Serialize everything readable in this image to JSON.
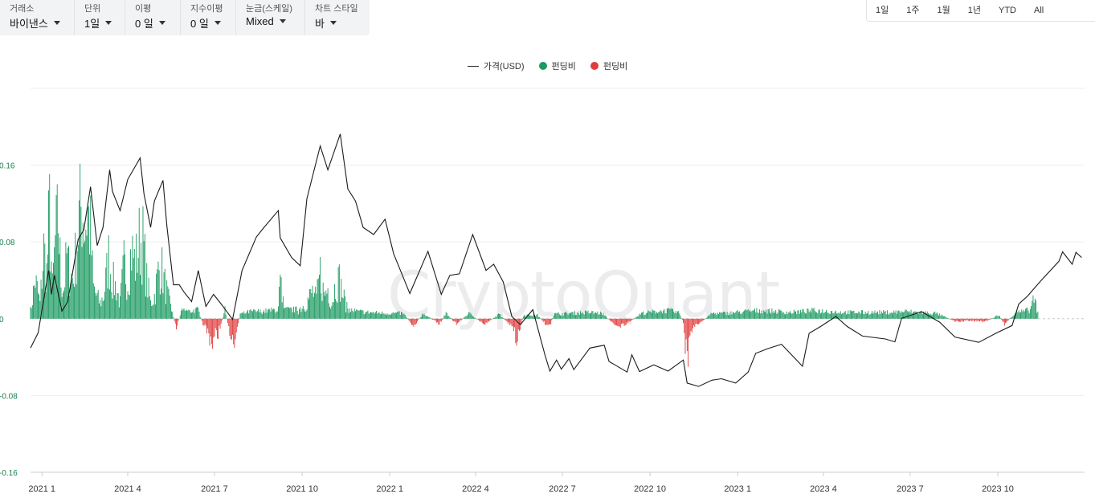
{
  "toolbar": {
    "exchange": {
      "label": "거래소",
      "value": "바이낸스"
    },
    "unit": {
      "label": "단위",
      "value": "1일"
    },
    "ma": {
      "label": "이평",
      "value": "0 일"
    },
    "ema": {
      "label": "지수이평",
      "value": "0 일"
    },
    "scale": {
      "label": "눈금(스케일)",
      "value": "Mixed"
    },
    "chart_style": {
      "label": "차트 스타일",
      "value": "바"
    }
  },
  "ranges": [
    "1일",
    "1주",
    "1월",
    "1년",
    "YTD",
    "All"
  ],
  "watermark": "CryptoQuant",
  "colors": {
    "positive": "#1a9a60",
    "negative": "#e03c3c",
    "price": "#1b1b1b",
    "grid": "#eeeeee"
  },
  "chart_data": {
    "type": "bar",
    "legend_position": "top-center",
    "legend": [
      {
        "name": "가격(USD)",
        "kind": "line",
        "color": "#1b1b1b"
      },
      {
        "name": "펀딩비",
        "kind": "dot",
        "color": "#1a9a60"
      },
      {
        "name": "펀딩비",
        "kind": "dot",
        "color": "#e03c3c"
      }
    ],
    "xlabel": "",
    "ylabel": "",
    "ylim": [
      -0.16,
      0.24
    ],
    "yticks": [
      {
        "value": 0.16,
        "label": "0.16"
      },
      {
        "value": 0.08,
        "label": "0.08"
      },
      {
        "value": 0,
        "label": "0"
      },
      {
        "value": -0.08,
        "label": "-0.08"
      },
      {
        "value": -0.16,
        "label": "-0.16"
      }
    ],
    "x_range": [
      "2020-12-20",
      "2023-12-31"
    ],
    "xticks": [
      {
        "date": "2021-01-01",
        "label": "2021 1"
      },
      {
        "date": "2021-04-01",
        "label": "2021 4"
      },
      {
        "date": "2021-07-01",
        "label": "2021 7"
      },
      {
        "date": "2021-10-01",
        "label": "2021 10"
      },
      {
        "date": "2022-01-01",
        "label": "2022 1"
      },
      {
        "date": "2022-04-01",
        "label": "2022 4"
      },
      {
        "date": "2022-07-01",
        "label": "2022 7"
      },
      {
        "date": "2022-10-01",
        "label": "2022 10"
      },
      {
        "date": "2023-01-01",
        "label": "2023 1"
      },
      {
        "date": "2023-04-01",
        "label": "2023 4"
      },
      {
        "date": "2023-07-01",
        "label": "2023 7"
      },
      {
        "date": "2023-10-01",
        "label": "2023 10"
      }
    ],
    "funding_rate": {
      "name": "펀딩비",
      "points": [
        [
          "2020-12-20",
          0.01
        ],
        [
          "2020-12-25",
          0.05
        ],
        [
          "2020-12-30",
          0.02
        ],
        [
          "2021-01-03",
          0.09
        ],
        [
          "2021-01-06",
          0.06
        ],
        [
          "2021-01-09",
          0.14
        ],
        [
          "2021-01-12",
          0.04
        ],
        [
          "2021-01-15",
          0.1
        ],
        [
          "2021-01-18",
          0.13
        ],
        [
          "2021-01-21",
          0.05
        ],
        [
          "2021-01-24",
          0.04
        ],
        [
          "2021-01-27",
          0.08
        ],
        [
          "2021-01-30",
          0.06
        ],
        [
          "2021-02-03",
          0.05
        ],
        [
          "2021-02-06",
          0.09
        ],
        [
          "2021-02-09",
          0.13
        ],
        [
          "2021-02-12",
          0.15
        ],
        [
          "2021-02-15",
          0.12
        ],
        [
          "2021-02-18",
          0.14
        ],
        [
          "2021-02-21",
          0.11
        ],
        [
          "2021-02-24",
          0.04
        ],
        [
          "2021-02-27",
          0.03
        ],
        [
          "2021-03-03",
          0.02
        ],
        [
          "2021-03-07",
          0.03
        ],
        [
          "2021-03-12",
          0.08
        ],
        [
          "2021-03-16",
          0.05
        ],
        [
          "2021-03-20",
          0.04
        ],
        [
          "2021-03-24",
          0.02
        ],
        [
          "2021-03-28",
          0.07
        ],
        [
          "2021-04-01",
          0.05
        ],
        [
          "2021-04-05",
          0.09
        ],
        [
          "2021-04-09",
          0.07
        ],
        [
          "2021-04-13",
          0.1
        ],
        [
          "2021-04-17",
          0.1
        ],
        [
          "2021-04-21",
          0.05
        ],
        [
          "2021-04-25",
          0.02
        ],
        [
          "2021-04-29",
          0.03
        ],
        [
          "2021-05-03",
          0.06
        ],
        [
          "2021-05-06",
          0.07
        ],
        [
          "2021-05-09",
          0.05
        ],
        [
          "2021-05-13",
          0.03
        ],
        [
          "2021-05-17",
          0.01
        ],
        [
          "2021-05-22",
          -0.01
        ],
        [
          "2021-05-28",
          0.01
        ],
        [
          "2021-06-05",
          0.008
        ],
        [
          "2021-06-14",
          0.01
        ],
        [
          "2021-06-20",
          -0.01
        ],
        [
          "2021-06-25",
          -0.02
        ],
        [
          "2021-06-29",
          -0.03
        ],
        [
          "2021-07-06",
          -0.015
        ],
        [
          "2021-07-12",
          0.01
        ],
        [
          "2021-07-18",
          -0.02
        ],
        [
          "2021-07-22",
          -0.025
        ],
        [
          "2021-07-28",
          0.005
        ],
        [
          "2021-08-08",
          0.008
        ],
        [
          "2021-08-20",
          0.008
        ],
        [
          "2021-09-05",
          0.01
        ],
        [
          "2021-09-08",
          0.05
        ],
        [
          "2021-09-12",
          0.01
        ],
        [
          "2021-09-25",
          0.01
        ],
        [
          "2021-10-05",
          0.02
        ],
        [
          "2021-10-12",
          0.035
        ],
        [
          "2021-10-16",
          0.025
        ],
        [
          "2021-10-20",
          0.06
        ],
        [
          "2021-10-24",
          0.03
        ],
        [
          "2021-10-28",
          0.04
        ],
        [
          "2021-11-01",
          0.02
        ],
        [
          "2021-11-05",
          0.045
        ],
        [
          "2021-11-09",
          0.05
        ],
        [
          "2021-11-13",
          0.03
        ],
        [
          "2021-11-18",
          0.01
        ],
        [
          "2021-11-28",
          0.008
        ],
        [
          "2021-12-10",
          0.007
        ],
        [
          "2021-12-28",
          0.006
        ],
        [
          "2022-01-15",
          0.006
        ],
        [
          "2022-01-26",
          -0.008
        ],
        [
          "2022-02-05",
          0.006
        ],
        [
          "2022-02-22",
          -0.006
        ],
        [
          "2022-03-01",
          0.006
        ],
        [
          "2022-03-12",
          -0.006
        ],
        [
          "2022-03-25",
          0.006
        ],
        [
          "2022-04-10",
          -0.006
        ],
        [
          "2022-04-26",
          0.005
        ],
        [
          "2022-05-10",
          -0.01
        ],
        [
          "2022-05-15",
          -0.028
        ],
        [
          "2022-05-21",
          0.004
        ],
        [
          "2022-06-05",
          0.004
        ],
        [
          "2022-06-12",
          -0.004
        ],
        [
          "2022-06-18",
          -0.01
        ],
        [
          "2022-06-22",
          0.005
        ],
        [
          "2022-07-10",
          0.006
        ],
        [
          "2022-07-28",
          0.007
        ],
        [
          "2022-08-12",
          0.006
        ],
        [
          "2022-08-22",
          -0.004
        ],
        [
          "2022-08-30",
          -0.008
        ],
        [
          "2022-09-08",
          -0.005
        ],
        [
          "2022-09-22",
          0.006
        ],
        [
          "2022-10-08",
          0.008
        ],
        [
          "2022-10-22",
          0.009
        ],
        [
          "2022-11-01",
          0.006
        ],
        [
          "2022-11-05",
          -0.004
        ],
        [
          "2022-11-09",
          -0.06
        ],
        [
          "2022-11-12",
          -0.02
        ],
        [
          "2022-11-16",
          -0.01
        ],
        [
          "2022-11-22",
          -0.005
        ],
        [
          "2022-12-05",
          0.006
        ],
        [
          "2022-12-20",
          0.006
        ],
        [
          "2023-01-10",
          0.008
        ],
        [
          "2023-01-25",
          0.009
        ],
        [
          "2023-02-10",
          0.008
        ],
        [
          "2023-02-25",
          0.007
        ],
        [
          "2023-03-10",
          0.008
        ],
        [
          "2023-03-22",
          0.009
        ],
        [
          "2023-04-08",
          0.008
        ],
        [
          "2023-04-22",
          0.007
        ],
        [
          "2023-05-08",
          0.007
        ],
        [
          "2023-05-25",
          0.007
        ],
        [
          "2023-06-10",
          0.007
        ],
        [
          "2023-06-25",
          0.008
        ],
        [
          "2023-07-10",
          0.007
        ],
        [
          "2023-07-28",
          0.006
        ],
        [
          "2023-08-18",
          -0.003
        ],
        [
          "2023-09-02",
          -0.002
        ],
        [
          "2023-09-18",
          -0.003
        ],
        [
          "2023-10-02",
          0.004
        ],
        [
          "2023-10-08",
          -0.006
        ],
        [
          "2023-10-20",
          0.007
        ],
        [
          "2023-10-28",
          0.008
        ],
        [
          "2023-11-04",
          0.01
        ],
        [
          "2023-11-08",
          0.027
        ],
        [
          "2023-11-10",
          0.02
        ],
        [
          "2023-11-12",
          0.012
        ]
      ]
    },
    "price": {
      "name": "가격(USD)",
      "min_value": 15500,
      "max_value": 69000,
      "points": [
        [
          "2020-12-20",
          23800
        ],
        [
          "2020-12-28",
          27000
        ],
        [
          "2021-01-08",
          40000
        ],
        [
          "2021-01-11",
          35000
        ],
        [
          "2021-01-14",
          39000
        ],
        [
          "2021-01-22",
          31500
        ],
        [
          "2021-01-28",
          33500
        ],
        [
          "2021-02-08",
          46500
        ],
        [
          "2021-02-14",
          48500
        ],
        [
          "2021-02-21",
          57500
        ],
        [
          "2021-02-28",
          45200
        ],
        [
          "2021-03-06",
          49000
        ],
        [
          "2021-03-13",
          61000
        ],
        [
          "2021-03-16",
          56500
        ],
        [
          "2021-03-24",
          52500
        ],
        [
          "2021-04-01",
          59000
        ],
        [
          "2021-04-14",
          63500
        ],
        [
          "2021-04-18",
          56000
        ],
        [
          "2021-04-25",
          49000
        ],
        [
          "2021-04-29",
          54500
        ],
        [
          "2021-05-08",
          58800
        ],
        [
          "2021-05-12",
          49500
        ],
        [
          "2021-05-19",
          37000
        ],
        [
          "2021-05-25",
          37000
        ],
        [
          "2021-05-30",
          35500
        ],
        [
          "2021-06-07",
          33500
        ],
        [
          "2021-06-14",
          40000
        ],
        [
          "2021-06-22",
          32500
        ],
        [
          "2021-06-30",
          35000
        ],
        [
          "2021-07-08",
          33000
        ],
        [
          "2021-07-20",
          29800
        ],
        [
          "2021-07-30",
          40000
        ],
        [
          "2021-08-14",
          47000
        ],
        [
          "2021-08-22",
          49000
        ],
        [
          "2021-09-06",
          52500
        ],
        [
          "2021-09-08",
          46800
        ],
        [
          "2021-09-20",
          42700
        ],
        [
          "2021-09-29",
          41000
        ],
        [
          "2021-10-06",
          55000
        ],
        [
          "2021-10-20",
          66000
        ],
        [
          "2021-10-28",
          61000
        ],
        [
          "2021-11-10",
          68500
        ],
        [
          "2021-11-18",
          57000
        ],
        [
          "2021-11-26",
          54500
        ],
        [
          "2021-12-04",
          49000
        ],
        [
          "2021-12-15",
          47500
        ],
        [
          "2021-12-27",
          50700
        ],
        [
          "2022-01-05",
          43500
        ],
        [
          "2022-01-22",
          35200
        ],
        [
          "2022-02-10",
          44000
        ],
        [
          "2022-02-24",
          35000
        ],
        [
          "2022-03-05",
          39000
        ],
        [
          "2022-03-15",
          39300
        ],
        [
          "2022-03-29",
          47500
        ],
        [
          "2022-04-12",
          40000
        ],
        [
          "2022-04-20",
          41300
        ],
        [
          "2022-04-30",
          37600
        ],
        [
          "2022-05-09",
          30400
        ],
        [
          "2022-05-18",
          28700
        ],
        [
          "2022-05-31",
          31800
        ],
        [
          "2022-06-13",
          22200
        ],
        [
          "2022-06-18",
          19000
        ],
        [
          "2022-06-25",
          21300
        ],
        [
          "2022-06-30",
          19400
        ],
        [
          "2022-07-08",
          21600
        ],
        [
          "2022-07-13",
          19300
        ],
        [
          "2022-07-30",
          23800
        ],
        [
          "2022-08-14",
          24400
        ],
        [
          "2022-08-19",
          21000
        ],
        [
          "2022-08-26",
          20200
        ],
        [
          "2022-09-07",
          18800
        ],
        [
          "2022-09-12",
          22400
        ],
        [
          "2022-09-20",
          18900
        ],
        [
          "2022-10-05",
          20300
        ],
        [
          "2022-10-20",
          19000
        ],
        [
          "2022-11-05",
          21300
        ],
        [
          "2022-11-09",
          16500
        ],
        [
          "2022-11-21",
          15800
        ],
        [
          "2022-12-05",
          17100
        ],
        [
          "2022-12-15",
          17400
        ],
        [
          "2022-12-30",
          16500
        ],
        [
          "2023-01-12",
          18800
        ],
        [
          "2023-01-20",
          22700
        ],
        [
          "2023-02-02",
          23700
        ],
        [
          "2023-02-16",
          24600
        ],
        [
          "2023-03-10",
          20000
        ],
        [
          "2023-03-17",
          26900
        ],
        [
          "2023-03-29",
          28300
        ],
        [
          "2023-04-14",
          30400
        ],
        [
          "2023-04-26",
          28300
        ],
        [
          "2023-05-12",
          26300
        ],
        [
          "2023-06-05",
          25700
        ],
        [
          "2023-06-15",
          25100
        ],
        [
          "2023-06-22",
          30000
        ],
        [
          "2023-07-13",
          31400
        ],
        [
          "2023-08-01",
          29200
        ],
        [
          "2023-08-17",
          26100
        ],
        [
          "2023-09-11",
          25000
        ],
        [
          "2023-09-30",
          27000
        ],
        [
          "2023-10-16",
          28500
        ],
        [
          "2023-10-23",
          33000
        ],
        [
          "2023-11-01",
          34600
        ],
        [
          "2023-11-15",
          37800
        ],
        [
          "2023-12-04",
          41900
        ],
        [
          "2023-12-08",
          43900
        ],
        [
          "2023-12-18",
          41300
        ],
        [
          "2023-12-22",
          43800
        ],
        [
          "2023-12-28",
          42700
        ]
      ]
    }
  }
}
